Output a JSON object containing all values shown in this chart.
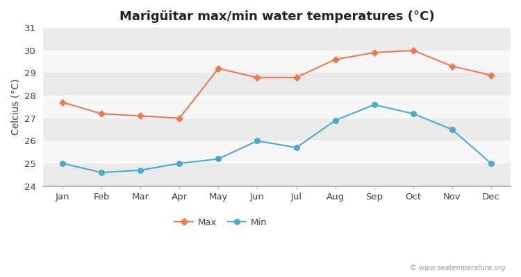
{
  "title": "Marigüitar max/min water temperatures (°C)",
  "ylabel": "Celcius (°C)",
  "months": [
    "Jan",
    "Feb",
    "Mar",
    "Apr",
    "May",
    "Jun",
    "Jul",
    "Aug",
    "Sep",
    "Oct",
    "Nov",
    "Dec"
  ],
  "max_temps": [
    27.7,
    27.2,
    27.1,
    27.0,
    29.2,
    28.8,
    28.8,
    29.6,
    29.9,
    30.0,
    29.3,
    28.9
  ],
  "min_temps": [
    25.0,
    24.6,
    24.7,
    25.0,
    25.2,
    26.0,
    25.7,
    26.9,
    27.6,
    27.2,
    26.5,
    25.0
  ],
  "max_color": "#f0784a",
  "min_color": "#4aaad2",
  "ylim": [
    24,
    31
  ],
  "yticks": [
    24,
    25,
    26,
    27,
    28,
    29,
    30,
    31
  ],
  "fig_bg_color": "#ffffff",
  "plot_bg_color": "#ffffff",
  "band_color_light": "#ebebeb",
  "band_color_white": "#f8f8f8",
  "watermark": "© www.seatemperature.org",
  "legend_labels": [
    "Max",
    "Min"
  ],
  "title_fontsize": 13,
  "label_fontsize": 10,
  "tick_fontsize": 9.5
}
